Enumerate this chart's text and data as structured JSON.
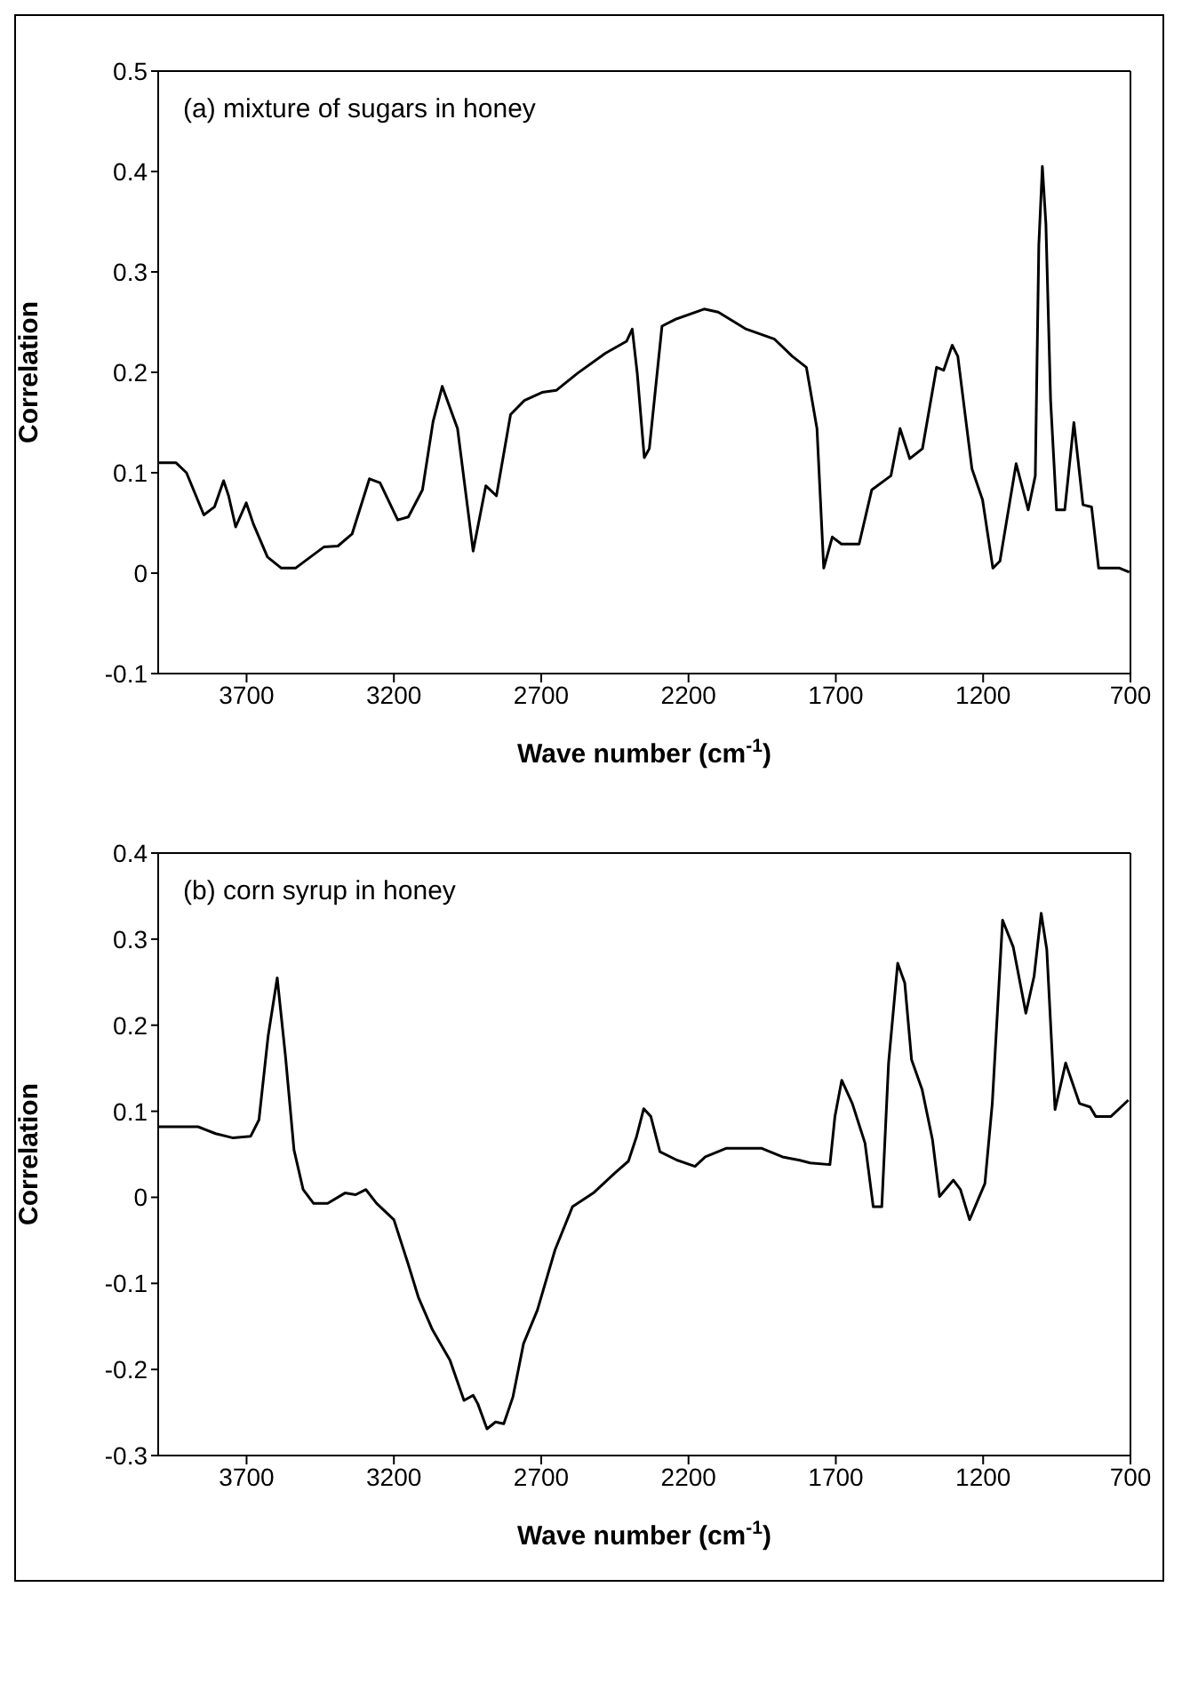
{
  "chart_data": [
    {
      "type": "line",
      "xlabel": "Wave number (cm$^{-1}$)",
      "ylabel": "Correlation",
      "annotations": [
        "(a) mixture of sugars in honey"
      ],
      "xlim": [
        4000,
        700
      ],
      "xticks": [
        3700,
        3200,
        2700,
        2200,
        1700,
        1200,
        700
      ],
      "ylim": [
        -0.1,
        0.5
      ],
      "yticks": [
        -0.1,
        0,
        0.1,
        0.2,
        0.3,
        0.4,
        0.5
      ],
      "grid": false,
      "legend": false,
      "marker": "none",
      "line_style": "solid",
      "x": [
        4000,
        3940,
        3904,
        3845,
        3809,
        3778,
        3761,
        3737,
        3701,
        3677,
        3629,
        3582,
        3534,
        3438,
        3390,
        3342,
        3283,
        3247,
        3187,
        3151,
        3103,
        3067,
        3036,
        2984,
        2931,
        2888,
        2852,
        2804,
        2757,
        2697,
        2649,
        2577,
        2482,
        2410,
        2391,
        2374,
        2350,
        2333,
        2290,
        2243,
        2147,
        2099,
        2004,
        1908,
        1848,
        1800,
        1764,
        1741,
        1712,
        1681,
        1621,
        1578,
        1513,
        1482,
        1449,
        1406,
        1358,
        1334,
        1305,
        1286,
        1238,
        1202,
        1167,
        1143,
        1088,
        1047,
        1023,
        1011,
        999,
        987,
        971,
        951,
        923,
        892,
        861,
        832,
        808,
        737,
        704
      ],
      "series": [
        {
          "color": "#000000",
          "values": [
            0.11,
            0.11,
            0.1,
            0.058,
            0.066,
            0.092,
            0.077,
            0.046,
            0.07,
            0.049,
            0.016,
            0.005,
            0.005,
            0.026,
            0.027,
            0.039,
            0.094,
            0.09,
            0.053,
            0.056,
            0.083,
            0.151,
            0.186,
            0.144,
            0.022,
            0.087,
            0.077,
            0.158,
            0.172,
            0.18,
            0.182,
            0.199,
            0.219,
            0.231,
            0.243,
            0.199,
            0.115,
            0.124,
            0.246,
            0.253,
            0.263,
            0.26,
            0.243,
            0.233,
            0.216,
            0.205,
            0.144,
            0.005,
            0.036,
            0.029,
            0.029,
            0.083,
            0.097,
            0.144,
            0.114,
            0.124,
            0.205,
            0.202,
            0.227,
            0.216,
            0.104,
            0.073,
            0.005,
            0.012,
            0.109,
            0.063,
            0.097,
            0.327,
            0.405,
            0.348,
            0.172,
            0.063,
            0.063,
            0.15,
            0.068,
            0.066,
            0.005,
            0.005,
            0.001
          ]
        }
      ]
    },
    {
      "type": "line",
      "xlabel": "Wave number (cm$^{-1}$)",
      "ylabel": "Correlation",
      "annotations": [
        "(b) corn syrup in honey"
      ],
      "xlim": [
        4000,
        700
      ],
      "xticks": [
        3700,
        3200,
        2700,
        2200,
        1700,
        1200,
        700
      ],
      "ylim": [
        -0.3,
        0.4
      ],
      "yticks": [
        -0.3,
        -0.2,
        -0.1,
        0,
        0.1,
        0.2,
        0.3,
        0.4
      ],
      "grid": false,
      "legend": false,
      "marker": "none",
      "line_style": "solid",
      "x": [
        4000,
        3865,
        3805,
        3746,
        3686,
        3658,
        3627,
        3596,
        3568,
        3539,
        3508,
        3473,
        3425,
        3366,
        3330,
        3295,
        3259,
        3200,
        3152,
        3117,
        3069,
        3010,
        2962,
        2931,
        2915,
        2884,
        2855,
        2827,
        2796,
        2760,
        2713,
        2653,
        2594,
        2523,
        2451,
        2404,
        2376,
        2352,
        2328,
        2297,
        2238,
        2178,
        2143,
        2071,
        1953,
        1881,
        1822,
        1787,
        1720,
        1703,
        1680,
        1644,
        1601,
        1573,
        1544,
        1521,
        1490,
        1466,
        1443,
        1407,
        1372,
        1348,
        1301,
        1277,
        1246,
        1194,
        1169,
        1134,
        1098,
        1055,
        1027,
        1003,
        984,
        956,
        920,
        873,
        837,
        818,
        766,
        707
      ],
      "series": [
        {
          "color": "#000000",
          "values": [
            0.082,
            0.082,
            0.074,
            0.069,
            0.071,
            0.09,
            0.187,
            0.255,
            0.164,
            0.055,
            0.009,
            -0.007,
            -0.007,
            0.005,
            0.003,
            0.009,
            -0.007,
            -0.026,
            -0.077,
            -0.116,
            -0.154,
            -0.189,
            -0.236,
            -0.23,
            -0.24,
            -0.269,
            -0.261,
            -0.263,
            -0.232,
            -0.17,
            -0.131,
            -0.061,
            -0.011,
            0.005,
            0.028,
            0.042,
            0.071,
            0.103,
            0.094,
            0.053,
            0.043,
            0.036,
            0.047,
            0.057,
            0.057,
            0.047,
            0.043,
            0.04,
            0.038,
            0.094,
            0.136,
            0.109,
            0.063,
            -0.011,
            -0.011,
            0.156,
            0.272,
            0.249,
            0.16,
            0.125,
            0.067,
            0.001,
            0.02,
            0.009,
            -0.026,
            0.016,
            0.109,
            0.322,
            0.291,
            0.214,
            0.257,
            0.33,
            0.288,
            0.102,
            0.156,
            0.109,
            0.105,
            0.094,
            0.094,
            0.113
          ]
        }
      ]
    }
  ]
}
